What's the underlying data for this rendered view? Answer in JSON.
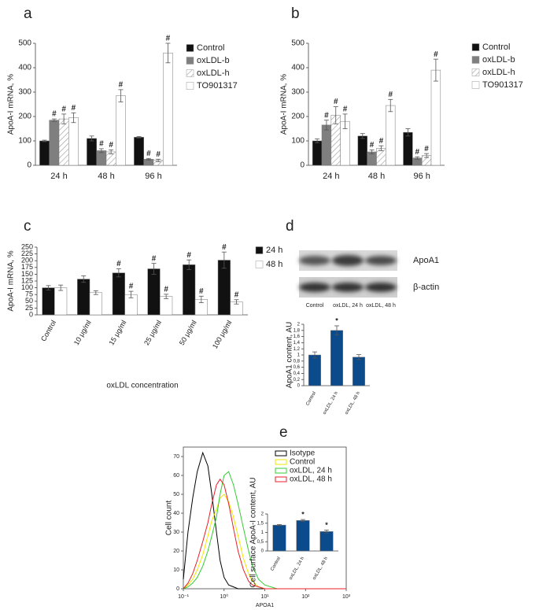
{
  "chart_data": [
    {
      "type": "bar",
      "panel": "a",
      "ylabel": "ApoA-I mRNA, %",
      "categories": [
        "24 h",
        "48 h",
        "96 h"
      ],
      "ylim": [
        0,
        500
      ],
      "yticks": [
        0,
        100,
        200,
        300,
        400,
        500
      ],
      "series": [
        {
          "name": "Control",
          "color": "#111111",
          "values": [
            100,
            110,
            115
          ],
          "errors": [
            3,
            10,
            3
          ],
          "marks": [
            null,
            null,
            null
          ]
        },
        {
          "name": "oxLDL-b",
          "color": "#7f7f7f",
          "values": [
            185,
            60,
            25
          ],
          "errors": [
            5,
            8,
            3
          ],
          "marks": [
            "#",
            "#",
            "#"
          ]
        },
        {
          "name": "oxLDL-h",
          "color": "#ffffff",
          "pattern": "hatch",
          "values": [
            190,
            55,
            20
          ],
          "errors": [
            20,
            8,
            5
          ],
          "marks": [
            "#",
            "#",
            "#"
          ]
        },
        {
          "name": "TO901317",
          "color": "#ffffff",
          "values": [
            195,
            285,
            460
          ],
          "errors": [
            20,
            25,
            40
          ],
          "marks": [
            "#",
            "#",
            "#"
          ]
        }
      ]
    },
    {
      "type": "bar",
      "panel": "b",
      "ylabel": "ApoA-I mRNA, %",
      "categories": [
        "24 h",
        "48 h",
        "96 h"
      ],
      "ylim": [
        0,
        500
      ],
      "yticks": [
        0,
        100,
        200,
        300,
        400,
        500
      ],
      "series": [
        {
          "name": "Control",
          "color": "#111111",
          "values": [
            100,
            120,
            135
          ],
          "errors": [
            8,
            10,
            15
          ],
          "marks": [
            null,
            null,
            null
          ]
        },
        {
          "name": "oxLDL-b",
          "color": "#7f7f7f",
          "values": [
            165,
            55,
            30
          ],
          "errors": [
            20,
            8,
            5
          ],
          "marks": [
            "#",
            "#",
            "#"
          ]
        },
        {
          "name": "oxLDL-h",
          "color": "#ffffff",
          "pattern": "hatch",
          "values": [
            205,
            70,
            40
          ],
          "errors": [
            35,
            10,
            8
          ],
          "marks": [
            "#",
            "#",
            "#"
          ]
        },
        {
          "name": "TO901317",
          "color": "#ffffff",
          "values": [
            180,
            245,
            390
          ],
          "errors": [
            30,
            25,
            45
          ],
          "marks": [
            "#",
            "#",
            "#"
          ]
        }
      ]
    },
    {
      "type": "bar",
      "panel": "c",
      "ylabel": "ApoA-I mRNA, %",
      "xlabel": "oxLDL concentration",
      "categories": [
        "Control",
        "10 μg/ml",
        "15 μg/ml",
        "25 μg/ml",
        "50 μg/ml",
        "100 μg/ml"
      ],
      "ylim": [
        0,
        250
      ],
      "yticks": [
        0,
        25,
        50,
        75,
        100,
        125,
        150,
        175,
        200,
        225,
        250
      ],
      "series": [
        {
          "name": "24 h",
          "color": "#111111",
          "values": [
            100,
            132,
            155,
            170,
            185,
            202
          ],
          "errors": [
            8,
            12,
            15,
            20,
            18,
            30
          ],
          "marks": [
            null,
            null,
            "#",
            "#",
            "#",
            "#"
          ]
        },
        {
          "name": "48 h",
          "color": "#ffffff",
          "values": [
            100,
            82,
            75,
            68,
            57,
            48
          ],
          "errors": [
            10,
            7,
            12,
            8,
            12,
            8
          ],
          "marks": [
            null,
            null,
            "#",
            "#",
            "#",
            "#"
          ]
        }
      ]
    },
    {
      "type": "bar",
      "panel": "d",
      "ylabel": "ApoA1 content, AU",
      "blot": {
        "bands": [
          "ApoA1",
          "β-actin"
        ],
        "lanes": [
          "Control",
          "oxLDL, 24 h",
          "oxLDL, 48 h"
        ]
      },
      "categories": [
        "Control",
        "oxLDL, 24 h",
        "oxLDL, 48 h"
      ],
      "ylim": [
        0,
        2
      ],
      "yticks": [
        0,
        {
          "value": 0.2,
          "label": "0,2"
        },
        {
          "value": 0.4,
          "label": "0,4"
        },
        {
          "value": 0.6,
          "label": "0,6"
        },
        {
          "value": 0.8,
          "label": "0,8"
        },
        1,
        {
          "value": 1.2,
          "label": "1,2"
        },
        {
          "value": 1.4,
          "label": "1,4"
        },
        {
          "value": 1.6,
          "label": "1,6"
        },
        {
          "value": 1.8,
          "label": "1,8"
        },
        2
      ],
      "series": [
        {
          "color": "#0b4a8b",
          "values": [
            1,
            1.8,
            0.93
          ],
          "errors": [
            0.1,
            0.15,
            0.08
          ],
          "marks": [
            null,
            "*",
            null
          ]
        }
      ]
    },
    {
      "type": "line",
      "panel": "e",
      "ylabel": "Cell count",
      "xlabel": "APOA1",
      "xscale": "log",
      "x": [
        0.1,
        0.13,
        0.17,
        0.22,
        0.3,
        0.4,
        0.5,
        0.65,
        0.8,
        1,
        1.3,
        1.7,
        2.2,
        3,
        4,
        5,
        7,
        10,
        20,
        50,
        100,
        1000
      ],
      "xlim": [
        0.1,
        1000
      ],
      "xticks": [
        {
          "value": 0.1,
          "label": "10⁻¹"
        },
        {
          "value": 1,
          "label": "10⁰"
        },
        {
          "value": 10,
          "label": "10¹"
        },
        {
          "value": 100,
          "label": "10²"
        },
        {
          "value": 1000,
          "label": "10³"
        }
      ],
      "ylim": [
        0,
        75
      ],
      "yticks": [
        0,
        10,
        20,
        30,
        40,
        50,
        60,
        70
      ],
      "series": [
        {
          "name": "Isotype",
          "color": "#000000",
          "values": [
            5,
            30,
            48,
            62,
            72,
            65,
            50,
            30,
            15,
            6,
            2,
            1,
            0,
            0,
            0,
            0,
            0,
            0,
            0,
            0,
            0,
            0
          ]
        },
        {
          "name": "Control",
          "color": "#f2e600",
          "values": [
            0,
            2,
            5,
            10,
            18,
            28,
            36,
            42,
            48,
            50,
            46,
            38,
            28,
            16,
            8,
            4,
            1,
            0,
            0,
            0,
            0,
            0
          ]
        },
        {
          "name": "oxLDL, 24 h",
          "color": "#33cc33",
          "values": [
            0,
            1,
            3,
            6,
            12,
            20,
            28,
            38,
            50,
            60,
            62,
            55,
            45,
            32,
            20,
            12,
            5,
            2,
            0,
            0,
            0,
            0
          ]
        },
        {
          "name": "oxLDL, 48 h",
          "color": "#e8202a",
          "values": [
            0,
            3,
            8,
            15,
            25,
            35,
            45,
            55,
            58,
            55,
            45,
            32,
            20,
            10,
            4,
            2,
            1,
            0,
            0,
            0,
            0,
            0
          ]
        }
      ]
    },
    {
      "type": "bar",
      "ylabel": "Cell surface ApoA-I content, AU",
      "categories": [
        "Control",
        "oxLDL, 24 h",
        "oxLDL, 48 h"
      ],
      "ylim": [
        0,
        2
      ],
      "yticks": [
        0,
        {
          "value": 0.5,
          "label": "0,5"
        },
        1,
        {
          "value": 1.5,
          "label": "1,5"
        },
        2
      ],
      "series": [
        {
          "color": "#0b4a8b",
          "values": [
            1.4,
            1.65,
            1.05
          ],
          "errors": [
            0.03,
            0.05,
            0.08
          ],
          "marks": [
            null,
            "*",
            "*"
          ]
        }
      ]
    }
  ]
}
